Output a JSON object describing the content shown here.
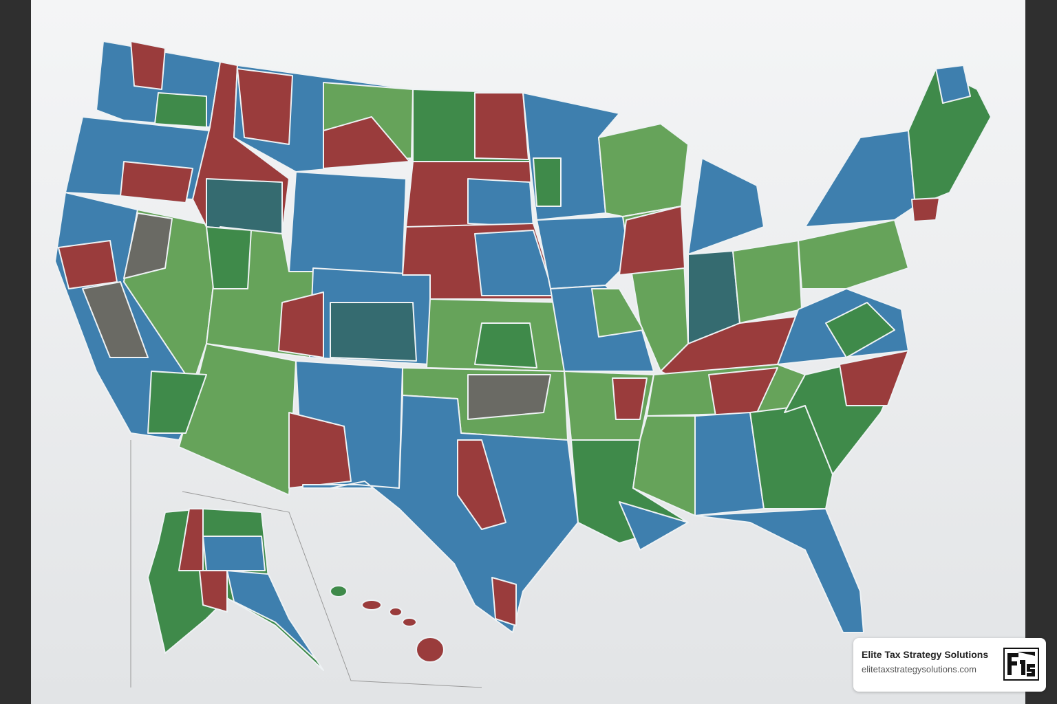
{
  "watermark": {
    "title": "Elite Tax Strategy Solutions",
    "url": "elitetaxstrategysolutions.com"
  }
}
